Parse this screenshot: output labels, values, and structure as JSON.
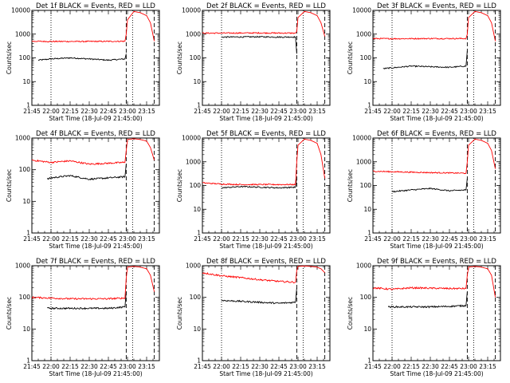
{
  "figure": {
    "background": "#ffffff",
    "events_color": "#000000",
    "lld_color": "#ff0000"
  },
  "chart_data": [
    {
      "type": "line",
      "title": "Det 1f BLACK = Events, RED = LLD",
      "xlabel": "Start Time (18-Jul-09 21:45:00)",
      "ylabel": "Counts/sec",
      "xlim": [
        "21:45",
        "23:25"
      ],
      "ylim": [
        1,
        10000
      ],
      "yscale": "log",
      "xticks": [
        "21:45",
        "22:00",
        "22:15",
        "22:30",
        "22:45",
        "23:00",
        "23:15"
      ],
      "yticks": [
        "1",
        "10",
        "100",
        "1000",
        "10000"
      ],
      "dotted_lines": [
        "22:00",
        "23:04"
      ],
      "dashed_lines": [
        "22:59",
        "23:21"
      ],
      "series": [
        {
          "color": "#000000",
          "x": [
            "21:50",
            "22:00",
            "22:15",
            "22:30",
            "22:45",
            "22:58",
            "22:59"
          ],
          "values": [
            80,
            90,
            100,
            90,
            80,
            90,
            150
          ]
        },
        {
          "color": "#ff0000",
          "x": [
            "21:45",
            "22:00",
            "22:30",
            "22:58",
            "22:59",
            "23:00",
            "23:05",
            "23:10",
            "23:15",
            "23:18",
            "23:21"
          ],
          "values": [
            500,
            490,
            490,
            500,
            1000,
            4000,
            9000,
            8000,
            6000,
            3000,
            500
          ]
        }
      ]
    },
    {
      "type": "line",
      "title": "Det 2f BLACK = Events, RED = LLD",
      "xlabel": "Start Time (18-Jul-09 21:45:00)",
      "ylabel": "Counts/sec",
      "xlim": [
        "21:45",
        "23:25"
      ],
      "ylim": [
        1,
        10000
      ],
      "yscale": "log",
      "xticks": [
        "21:45",
        "22:00",
        "22:15",
        "22:30",
        "22:45",
        "23:00",
        "23:15"
      ],
      "yticks": [
        "1",
        "10",
        "100",
        "1000",
        "10000"
      ],
      "dotted_lines": [
        "22:00",
        "23:04"
      ],
      "dashed_lines": [
        "22:59",
        "23:21"
      ],
      "series": [
        {
          "color": "#000000",
          "x": [
            "22:00",
            "22:15",
            "22:30",
            "22:45",
            "22:58",
            "22:59"
          ],
          "values": [
            750,
            760,
            770,
            750,
            760,
            150
          ]
        },
        {
          "color": "#ff0000",
          "x": [
            "21:45",
            "22:00",
            "22:30",
            "22:58",
            "22:59",
            "23:00",
            "23:05",
            "23:10",
            "23:15",
            "23:18",
            "23:21"
          ],
          "values": [
            1100,
            1100,
            1120,
            1100,
            1300,
            5000,
            9000,
            8000,
            6000,
            3000,
            800
          ]
        }
      ]
    },
    {
      "type": "line",
      "title": "Det 3f BLACK = Events, RED = LLD",
      "xlabel": "Start Time (18-Jul-09 21:45:00)",
      "ylabel": "Counts/sec",
      "xlim": [
        "21:45",
        "23:25"
      ],
      "ylim": [
        1,
        10000
      ],
      "yscale": "log",
      "xticks": [
        "21:45",
        "22:00",
        "22:15",
        "22:30",
        "22:45",
        "23:00",
        "23:15"
      ],
      "yticks": [
        "1",
        "10",
        "100",
        "1000",
        "10000"
      ],
      "dotted_lines": [
        "22:00",
        "23:04"
      ],
      "dashed_lines": [
        "22:59",
        "23:21"
      ],
      "series": [
        {
          "color": "#000000",
          "x": [
            "21:53",
            "22:00",
            "22:15",
            "22:30",
            "22:45",
            "22:58",
            "22:59"
          ],
          "values": [
            35,
            38,
            45,
            42,
            40,
            45,
            200
          ]
        },
        {
          "color": "#ff0000",
          "x": [
            "21:45",
            "22:00",
            "22:30",
            "22:58",
            "22:59",
            "23:00",
            "23:05",
            "23:10",
            "23:15",
            "23:18",
            "23:21"
          ],
          "values": [
            650,
            640,
            650,
            650,
            1000,
            5000,
            9000,
            8000,
            6000,
            3000,
            500
          ]
        }
      ]
    },
    {
      "type": "line",
      "title": "Det 4f BLACK = Events, RED = LLD",
      "xlabel": "Start Time (18-Jul-09 21:45:00)",
      "ylabel": "Counts/sec",
      "xlim": [
        "21:45",
        "23:25"
      ],
      "ylim": [
        1,
        1000
      ],
      "yscale": "log",
      "xticks": [
        "21:45",
        "22:00",
        "22:15",
        "22:30",
        "22:45",
        "23:00",
        "23:15"
      ],
      "yticks": [
        "1",
        "10",
        "100",
        "1000"
      ],
      "dotted_lines": [
        "22:00",
        "23:04"
      ],
      "dashed_lines": [
        "22:59",
        "23:21"
      ],
      "series": [
        {
          "color": "#000000",
          "x": [
            "21:57",
            "22:00",
            "22:15",
            "22:30",
            "22:45",
            "22:58",
            "22:59"
          ],
          "values": [
            50,
            55,
            65,
            50,
            55,
            60,
            150
          ]
        },
        {
          "color": "#ff0000",
          "x": [
            "21:45",
            "22:00",
            "22:15",
            "22:30",
            "22:45",
            "22:58",
            "22:59",
            "23:00",
            "23:05",
            "23:10",
            "23:15",
            "23:18",
            "23:21"
          ],
          "values": [
            200,
            170,
            190,
            150,
            160,
            170,
            400,
            900,
            950,
            900,
            800,
            500,
            200
          ]
        }
      ]
    },
    {
      "type": "line",
      "title": "Det 5f BLACK = Events, RED = LLD",
      "xlabel": "Start Time (18-Jul-09 21:45:00)",
      "ylabel": "Counts/sec",
      "xlim": [
        "21:45",
        "23:25"
      ],
      "ylim": [
        1,
        10000
      ],
      "yscale": "log",
      "xticks": [
        "21:45",
        "22:00",
        "22:15",
        "22:30",
        "22:45",
        "23:00",
        "23:15"
      ],
      "yticks": [
        "1",
        "10",
        "100",
        "1000",
        "10000"
      ],
      "dotted_lines": [
        "22:00",
        "23:04"
      ],
      "dashed_lines": [
        "22:59",
        "23:21"
      ],
      "series": [
        {
          "color": "#000000",
          "x": [
            "22:00",
            "22:15",
            "22:30",
            "22:45",
            "22:58",
            "22:59"
          ],
          "values": [
            80,
            90,
            85,
            80,
            85,
            200
          ]
        },
        {
          "color": "#ff0000",
          "x": [
            "21:45",
            "22:00",
            "22:15",
            "22:30",
            "22:58",
            "22:59",
            "23:00",
            "23:05",
            "23:10",
            "23:15",
            "23:18",
            "23:21"
          ],
          "values": [
            130,
            115,
            110,
            110,
            110,
            1000,
            5000,
            9000,
            8000,
            6000,
            2000,
            200
          ]
        }
      ]
    },
    {
      "type": "line",
      "title": "Det 6f BLACK = Events, RED = LLD",
      "xlabel": "Start Time (18-Jul-09 21:45:00)",
      "ylabel": "Counts/sec",
      "xlim": [
        "21:45",
        "23:25"
      ],
      "ylim": [
        1,
        10000
      ],
      "yscale": "log",
      "xticks": [
        "21:45",
        "22:00",
        "22:15",
        "22:30",
        "22:45",
        "23:00",
        "23:15"
      ],
      "yticks": [
        "1",
        "10",
        "100",
        "1000",
        "10000"
      ],
      "dotted_lines": [
        "22:00",
        "23:04"
      ],
      "dashed_lines": [
        "22:59",
        "23:21"
      ],
      "series": [
        {
          "color": "#000000",
          "x": [
            "22:00",
            "22:15",
            "22:30",
            "22:45",
            "22:58",
            "22:59"
          ],
          "values": [
            55,
            65,
            75,
            60,
            65,
            200
          ]
        },
        {
          "color": "#ff0000",
          "x": [
            "21:45",
            "22:00",
            "22:30",
            "22:58",
            "22:59",
            "23:00",
            "23:05",
            "23:10",
            "23:15",
            "23:18",
            "23:21"
          ],
          "values": [
            400,
            380,
            350,
            330,
            1000,
            5000,
            9000,
            8000,
            6000,
            3000,
            500
          ]
        }
      ]
    },
    {
      "type": "line",
      "title": "Det 7f BLACK = Events, RED = LLD",
      "xlabel": "Start Time (18-Jul-09 21:45:00)",
      "ylabel": "Counts/sec",
      "xlim": [
        "21:45",
        "23:25"
      ],
      "ylim": [
        1,
        1000
      ],
      "yscale": "log",
      "xticks": [
        "21:45",
        "22:00",
        "22:15",
        "22:30",
        "22:45",
        "23:00",
        "23:15"
      ],
      "yticks": [
        "1",
        "10",
        "100",
        "1000"
      ],
      "dotted_lines": [
        "22:00",
        "23:04"
      ],
      "dashed_lines": [
        "22:59",
        "23:21"
      ],
      "series": [
        {
          "color": "#000000",
          "x": [
            "21:57",
            "22:00",
            "22:15",
            "22:30",
            "22:45",
            "22:58",
            "22:59"
          ],
          "values": [
            45,
            45,
            45,
            45,
            45,
            50,
            150
          ]
        },
        {
          "color": "#ff0000",
          "x": [
            "21:45",
            "22:00",
            "22:15",
            "22:30",
            "22:45",
            "22:58",
            "22:59",
            "23:00",
            "23:05",
            "23:10",
            "23:15",
            "23:18",
            "23:21"
          ],
          "values": [
            100,
            95,
            90,
            90,
            90,
            95,
            400,
            900,
            950,
            900,
            800,
            500,
            150
          ]
        }
      ]
    },
    {
      "type": "line",
      "title": "Det 8f BLACK = Events, RED = LLD",
      "xlabel": "Start Time (18-Jul-09 21:45:00)",
      "ylabel": "Counts/sec",
      "xlim": [
        "21:45",
        "23:25"
      ],
      "ylim": [
        1,
        1000
      ],
      "yscale": "log",
      "xticks": [
        "21:45",
        "22:00",
        "22:15",
        "22:30",
        "22:45",
        "23:00",
        "23:15"
      ],
      "yticks": [
        "1",
        "10",
        "100",
        "1000"
      ],
      "dotted_lines": [
        "22:00",
        "23:04"
      ],
      "dashed_lines": [
        "22:59",
        "23:21"
      ],
      "series": [
        {
          "color": "#000000",
          "x": [
            "22:00",
            "22:15",
            "22:30",
            "22:45",
            "22:58",
            "22:59"
          ],
          "values": [
            80,
            75,
            70,
            65,
            70,
            200
          ]
        },
        {
          "color": "#ff0000",
          "x": [
            "21:45",
            "22:00",
            "22:15",
            "22:30",
            "22:45",
            "22:58",
            "22:59",
            "23:00",
            "23:05",
            "23:10",
            "23:15",
            "23:18",
            "23:21"
          ],
          "values": [
            600,
            480,
            420,
            360,
            320,
            300,
            700,
            950,
            980,
            950,
            900,
            800,
            600
          ]
        }
      ]
    },
    {
      "type": "line",
      "title": "Det 9f BLACK = Events, RED = LLD",
      "xlabel": "Start Time (18-Jul-09 21:45:00)",
      "ylabel": "Counts/sec",
      "xlim": [
        "21:45",
        "23:25"
      ],
      "ylim": [
        1,
        1000
      ],
      "yscale": "log",
      "xticks": [
        "21:45",
        "22:00",
        "22:15",
        "22:30",
        "22:45",
        "23:00",
        "23:15"
      ],
      "yticks": [
        "1",
        "10",
        "100",
        "1000"
      ],
      "dotted_lines": [
        "22:00",
        "23:04"
      ],
      "dashed_lines": [
        "22:59",
        "23:21"
      ],
      "series": [
        {
          "color": "#000000",
          "x": [
            "21:57",
            "22:00",
            "22:15",
            "22:30",
            "22:45",
            "22:58",
            "22:59"
          ],
          "values": [
            50,
            50,
            50,
            50,
            52,
            55,
            150
          ]
        },
        {
          "color": "#ff0000",
          "x": [
            "21:45",
            "22:00",
            "22:15",
            "22:30",
            "22:45",
            "22:58",
            "22:59",
            "23:00",
            "23:05",
            "23:10",
            "23:15",
            "23:18",
            "23:21"
          ],
          "values": [
            200,
            180,
            200,
            195,
            190,
            190,
            500,
            900,
            950,
            900,
            800,
            500,
            100
          ]
        }
      ]
    }
  ]
}
